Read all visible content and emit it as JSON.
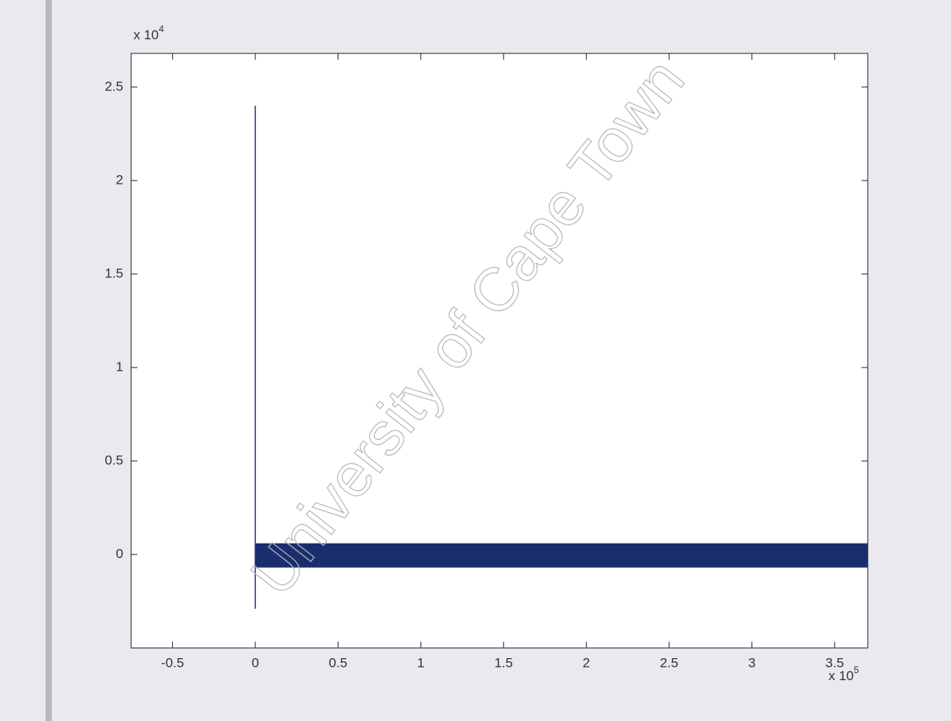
{
  "chart_data": {
    "type": "line",
    "x_multiplier": {
      "base": "x 10",
      "exponent": "5"
    },
    "y_multiplier": {
      "base": "x 10",
      "exponent": "4"
    },
    "watermark": "University of Cape Town",
    "xlim": [
      -0.75,
      3.7
    ],
    "xticks": [
      -0.5,
      0,
      0.5,
      1,
      1.5,
      2,
      2.5,
      3,
      3.5
    ],
    "ylim": [
      -0.5,
      2.68
    ],
    "yticks": [
      0,
      0.5,
      1,
      1.5,
      2,
      2.5
    ],
    "series": [
      {
        "color": "#1f3a8a",
        "x": [
          0,
          0
        ],
        "values": [
          -0.29,
          2.4
        ]
      },
      {
        "color": "#1a2d6e",
        "x": [
          0,
          3.7
        ],
        "upper": [
          0.06,
          0.06
        ],
        "lower": [
          -0.07,
          -0.07
        ]
      }
    ]
  }
}
